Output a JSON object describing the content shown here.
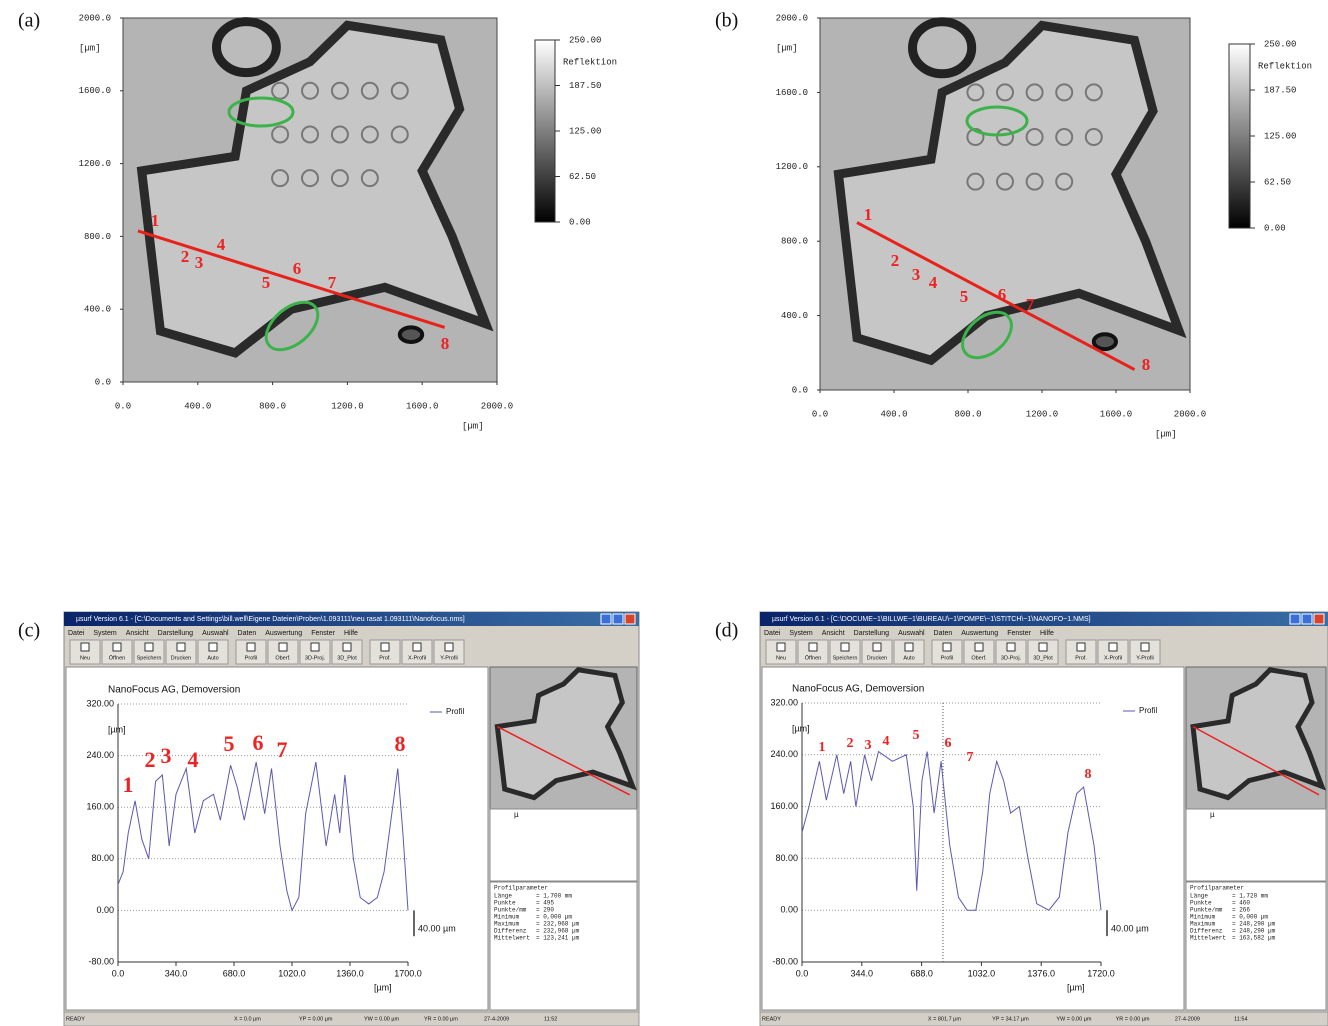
{
  "chart_data": [
    {
      "type": "image",
      "panel": "(a)",
      "x_unit": "[µm]",
      "y_unit": "[µm]",
      "xlim": [
        0,
        2000
      ],
      "xticks": [
        {
          "value": 0,
          "label": "0.0"
        },
        {
          "value": 400,
          "label": "400.0"
        },
        {
          "value": 800,
          "label": "800.0"
        },
        {
          "value": 1200,
          "label": "1200.0"
        },
        {
          "value": 1600,
          "label": "1600.0"
        },
        {
          "value": 2000,
          "label": "2000.0"
        }
      ],
      "ylim": [
        0,
        2000
      ],
      "yticks": [
        {
          "value": 0,
          "label": "0.0"
        },
        {
          "value": 400,
          "label": "400.0"
        },
        {
          "value": 800,
          "label": "800.0"
        },
        {
          "value": 1200,
          "label": "1200.0"
        },
        {
          "value": 1600,
          "label": "1600.0"
        },
        {
          "value": 2000,
          "label": "2000.0"
        }
      ],
      "colorbar": {
        "title": "Reflektion",
        "lim": [
          0,
          250
        ],
        "ticks": [
          {
            "value": 250,
            "label": "250.00"
          },
          {
            "value": 187.5,
            "label": "187.50"
          },
          {
            "value": 125,
            "label": "125.00"
          },
          {
            "value": 62.5,
            "label": "62.50"
          },
          {
            "value": 0,
            "label": "0.00"
          }
        ]
      },
      "profile_line": {
        "color": "#e8221a",
        "x": [
          80,
          1720
        ],
        "y": [
          830,
          300
        ]
      },
      "annotations": [
        "1",
        "2",
        "3",
        "4",
        "5",
        "6",
        "7",
        "8"
      ]
    },
    {
      "type": "image",
      "panel": "(b)",
      "x_unit": "[µm]",
      "y_unit": "[µm]",
      "xlim": [
        0,
        2000
      ],
      "xticks": [
        {
          "value": 0,
          "label": "0.0"
        },
        {
          "value": 400,
          "label": "400.0"
        },
        {
          "value": 800,
          "label": "800.0"
        },
        {
          "value": 1200,
          "label": "1200.0"
        },
        {
          "value": 1600,
          "label": "1600.0"
        },
        {
          "value": 2000,
          "label": "2000.0"
        }
      ],
      "ylim": [
        0,
        2000
      ],
      "yticks": [
        {
          "value": 0,
          "label": "0.0"
        },
        {
          "value": 400,
          "label": "400.0"
        },
        {
          "value": 800,
          "label": "800.0"
        },
        {
          "value": 1200,
          "label": "1200.0"
        },
        {
          "value": 1600,
          "label": "1600.0"
        },
        {
          "value": 2000,
          "label": "2000.0"
        }
      ],
      "colorbar": {
        "title": "Reflektion",
        "lim": [
          0,
          250
        ],
        "ticks": [
          {
            "value": 250,
            "label": "250.00"
          },
          {
            "value": 187.5,
            "label": "187.50"
          },
          {
            "value": 125,
            "label": "125.00"
          },
          {
            "value": 62.5,
            "label": "62.50"
          },
          {
            "value": 0,
            "label": "0.00"
          }
        ]
      },
      "profile_line": {
        "color": "#e8221a",
        "x": [
          200,
          1700
        ],
        "y": [
          900,
          110
        ]
      },
      "annotations": [
        "1",
        "2",
        "3",
        "4",
        "5",
        "6",
        "7",
        "8"
      ]
    },
    {
      "type": "line",
      "panel": "(c)",
      "window": {
        "title": "µsurf Version 6.1 - [C:\\Documents and Settings\\bill.well\\Eigene Dateien\\Proben\\1.093111\\neu rasat 1.093111\\Nanofocus.nms]",
        "menu": [
          "Datei",
          "System",
          "Ansicht",
          "Darstellung",
          "Auswahl",
          "Daten",
          "Auswertung",
          "Fenster",
          "Hilfe"
        ],
        "toolbar": [
          "Neu",
          "Öffnen",
          "Speichern",
          "Drucken",
          "Auto",
          "Profil",
          "Oberf.",
          "3D-Proj.",
          "3D_Plot",
          "Prof.",
          "X-Profil",
          "Y-Profil"
        ],
        "status": [
          "READY",
          "X = 0.0 µm",
          "YP = 0.00 µm",
          "YW = 0.00 µm",
          "YR = 0.00 µm",
          "27-4-2009",
          "11:52"
        ]
      },
      "title": "NanoFocus AG, Demoversion",
      "y_unit": "[µm]",
      "x_unit": "[µm]",
      "scale_label": "40.00 µm",
      "thumb_label": "µ",
      "xlim": [
        0,
        1700
      ],
      "xticks": [
        {
          "value": 0,
          "label": "0.0"
        },
        {
          "value": 340,
          "label": "340.0"
        },
        {
          "value": 680,
          "label": "680.0"
        },
        {
          "value": 1020,
          "label": "1020.0"
        },
        {
          "value": 1360,
          "label": "1360.0"
        },
        {
          "value": 1700,
          "label": "1700.0"
        }
      ],
      "ylim": [
        -80,
        320
      ],
      "yticks": [
        {
          "value": -80,
          "label": "-80.00"
        },
        {
          "value": 0,
          "label": "0.00"
        },
        {
          "value": 80,
          "label": "80.00"
        },
        {
          "value": 160,
          "label": "160.00"
        },
        {
          "value": 240,
          "label": "240.00"
        },
        {
          "value": 320,
          "label": "320.00"
        }
      ],
      "series": [
        {
          "name": "Profil",
          "color": "#5a5ab4",
          "x": [
            0,
            30,
            60,
            100,
            140,
            180,
            220,
            260,
            300,
            340,
            400,
            450,
            500,
            560,
            600,
            660,
            700,
            740,
            810,
            860,
            900,
            950,
            990,
            1020,
            1060,
            1100,
            1160,
            1220,
            1270,
            1300,
            1330,
            1380,
            1420,
            1470,
            1520,
            1560,
            1600,
            1640,
            1670,
            1700
          ],
          "values": [
            40,
            60,
            120,
            170,
            110,
            80,
            200,
            210,
            100,
            180,
            220,
            120,
            170,
            180,
            140,
            225,
            190,
            140,
            230,
            150,
            220,
            100,
            30,
            0,
            20,
            150,
            230,
            100,
            180,
            120,
            210,
            80,
            20,
            10,
            20,
            60,
            140,
            220,
            120,
            0
          ]
        }
      ],
      "annotations": [
        "1",
        "2",
        "3",
        "4",
        "5",
        "6",
        "7",
        "8"
      ],
      "params": {
        "title": "Profilparameter",
        "rows": [
          [
            "Länge",
            "= 1,700 mm"
          ],
          [
            "Punkte",
            "= 495"
          ],
          [
            "Punkte/mm",
            "= 290"
          ],
          [
            "Minimum",
            "= 0,000 µm"
          ],
          [
            "Maximum",
            "= 232,968 µm"
          ],
          [
            "Differenz",
            "= 232,968 µm"
          ],
          [
            "Mittelwert",
            "= 123,241 µm"
          ]
        ]
      }
    },
    {
      "type": "line",
      "panel": "(d)",
      "window": {
        "title": "µsurf Version 6.1 - [C:\\DOCUME~1\\BILLWE~1\\BUREAU\\~1\\POMPE\\~1\\STITCH\\~1\\NANOFO~1.NMS]",
        "menu": [
          "Datei",
          "System",
          "Ansicht",
          "Darstellung",
          "Auswahl",
          "Daten",
          "Auswertung",
          "Fenster",
          "Hilfe"
        ],
        "toolbar": [
          "Neu",
          "Öffnen",
          "Speichern",
          "Drucken",
          "Auto",
          "Profil",
          "Oberf.",
          "3D-Proj.",
          "3D_Plot",
          "Prof.",
          "X-Profil",
          "Y-Profil"
        ],
        "status": [
          "READY",
          "X = 801.7 µm",
          "YP = 34.17 µm",
          "YW = 0.00 µm",
          "YR = 0.00 µm",
          "27-4-2009",
          "11:54"
        ]
      },
      "title": "NanoFocus AG, Demoversion",
      "y_unit": "[µm]",
      "x_unit": "[µm]",
      "scale_label": "40.00 µm",
      "thumb_label": "µ",
      "xlim": [
        0,
        1720
      ],
      "xticks": [
        {
          "value": 0,
          "label": "0.0"
        },
        {
          "value": 344,
          "label": "344.0"
        },
        {
          "value": 688,
          "label": "688.0"
        },
        {
          "value": 1032,
          "label": "1032.0"
        },
        {
          "value": 1376,
          "label": "1376.0"
        },
        {
          "value": 1720,
          "label": "1720.0"
        }
      ],
      "ylim": [
        -80,
        320
      ],
      "yticks": [
        {
          "value": -80,
          "label": "-80.00"
        },
        {
          "value": 0,
          "label": "0.00"
        },
        {
          "value": 80,
          "label": "80.00"
        },
        {
          "value": 160,
          "label": "160.00"
        },
        {
          "value": 240,
          "label": "240.00"
        },
        {
          "value": 320,
          "label": "320.00"
        }
      ],
      "series": [
        {
          "name": "Profil",
          "color": "#5a5ab4",
          "x": [
            0,
            40,
            100,
            140,
            200,
            240,
            280,
            310,
            360,
            400,
            440,
            520,
            600,
            640,
            660,
            690,
            720,
            760,
            800,
            850,
            900,
            950,
            1000,
            1040,
            1080,
            1120,
            1160,
            1200,
            1250,
            1300,
            1350,
            1420,
            1480,
            1530,
            1580,
            1620,
            1680,
            1720
          ],
          "values": [
            120,
            160,
            230,
            170,
            240,
            180,
            230,
            160,
            240,
            200,
            245,
            230,
            240,
            160,
            30,
            200,
            245,
            150,
            230,
            100,
            20,
            0,
            0,
            60,
            180,
            230,
            200,
            150,
            160,
            80,
            10,
            0,
            20,
            120,
            180,
            190,
            100,
            0
          ]
        }
      ],
      "annotations": [
        "1",
        "2",
        "3",
        "4",
        "5",
        "6",
        "7",
        "8"
      ],
      "params": {
        "title": "Profilparameter",
        "rows": [
          [
            "Länge",
            "= 1,720 mm"
          ],
          [
            "Punkte",
            "= 460"
          ],
          [
            "Punkte/mm",
            "= 266"
          ],
          [
            "Minimum",
            "= 0,000 µm"
          ],
          [
            "Maximum",
            "= 248,290 µm"
          ],
          [
            "Differenz",
            "= 248,290 µm"
          ],
          [
            "Mittelwert",
            "= 163,582 µm"
          ]
        ]
      }
    }
  ]
}
